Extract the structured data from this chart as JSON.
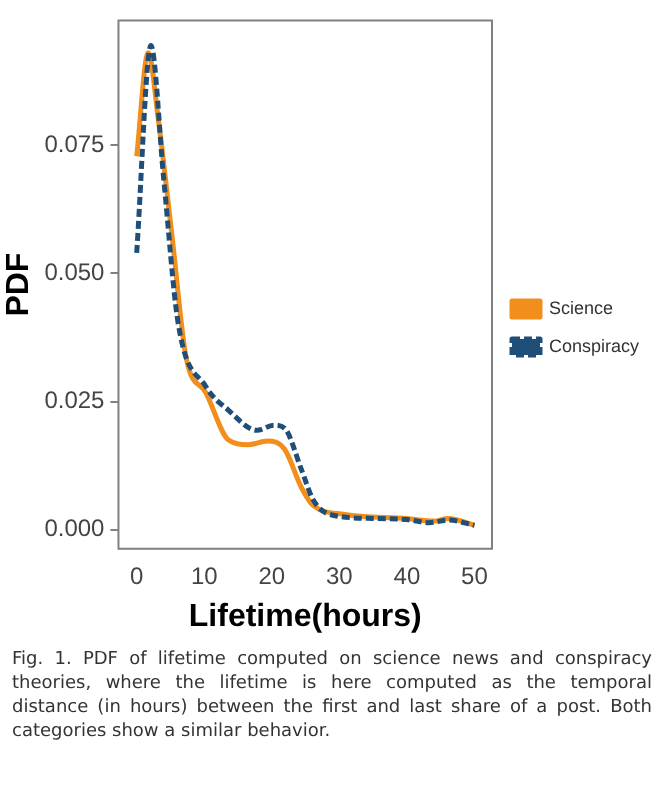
{
  "chart_data": {
    "type": "line",
    "xlabel": "Lifetime(hours)",
    "ylabel": "PDF",
    "xlim": [
      -2.7,
      52.6
    ],
    "ylim": [
      -0.0037,
      0.0993
    ],
    "xticks": [
      0,
      10,
      20,
      30,
      40,
      50
    ],
    "yticks": [
      {
        "value": 0,
        "label": "0.000"
      },
      {
        "value": 0.025,
        "label": "0.025"
      },
      {
        "value": 0.05,
        "label": "0.050"
      },
      {
        "value": 0.075,
        "label": "0.075"
      }
    ],
    "grid": false,
    "legend": "right",
    "marker": "none",
    "series": [
      {
        "name": "Science",
        "color": "#f28e1c",
        "line_style": "solid",
        "x": [
          0,
          1.7,
          3.2,
          5.25,
          7.3,
          10.25,
          13.6,
          16.5,
          19.4,
          21.9,
          24.4,
          26.1,
          30.8,
          40,
          44,
          46.1,
          50
        ],
        "values": [
          0.0728,
          0.093,
          0.08,
          0.057,
          0.0337,
          0.0267,
          0.0175,
          0.0166,
          0.0173,
          0.0157,
          0.0082,
          0.0048,
          0.003,
          0.0022,
          0.0017,
          0.0022,
          0.0009
        ]
      },
      {
        "name": "Conspiracy",
        "color": "#1f4e79",
        "line_style": "dashed",
        "x": [
          0,
          2.1,
          4,
          6.1,
          10.25,
          13.6,
          17.8,
          20.3,
          21.9,
          24.4,
          26.1,
          28.6,
          35.3,
          40,
          43.3,
          46.1,
          50
        ],
        "values": [
          0.054,
          0.0944,
          0.0684,
          0.0406,
          0.0279,
          0.0233,
          0.0194,
          0.0204,
          0.0198,
          0.0117,
          0.0059,
          0.003,
          0.0022,
          0.002,
          0.0014,
          0.0019,
          0.0009
        ]
      }
    ],
    "annotations": [
      "Fig. 1.  PDF of lifetime computed on science news and conspiracy theories, where the lifetime is here computed as the temporal distance (in hours) between the first and last share of a post. Both categories show a similar behavior."
    ]
  }
}
